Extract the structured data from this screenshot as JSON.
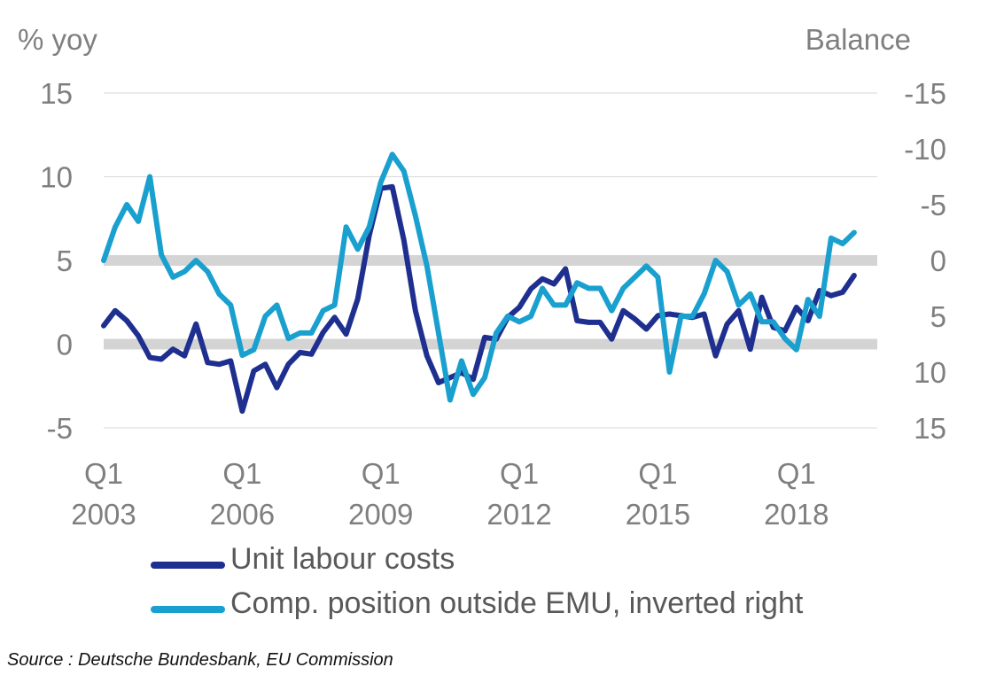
{
  "chart_data": {
    "type": "line",
    "left_axis_title": "% yoy",
    "right_axis_title": "Balance",
    "left_ylim": [
      -5,
      15
    ],
    "left_ticks": [
      "15",
      "10",
      "5",
      "0",
      "-5"
    ],
    "left_tick_values": [
      15,
      10,
      5,
      0,
      -5
    ],
    "right_ylim": [
      15,
      -15
    ],
    "right_ticks": [
      "-15",
      "-10",
      "-5",
      "0",
      "5",
      "10",
      "15"
    ],
    "right_tick_values": [
      -15,
      -10,
      -5,
      0,
      5,
      10,
      15
    ],
    "x_quarter_start": "2003Q1",
    "x_quarter_count": 68,
    "x_tick_labels": [
      {
        "q": 0,
        "line1": "Q1",
        "line2": "2003"
      },
      {
        "q": 12,
        "line1": "Q1",
        "line2": "2006"
      },
      {
        "q": 24,
        "line1": "Q1",
        "line2": "2009"
      },
      {
        "q": 36,
        "line1": "Q1",
        "line2": "2012"
      },
      {
        "q": 48,
        "line1": "Q1",
        "line2": "2015"
      },
      {
        "q": 60,
        "line1": "Q1",
        "line2": "2018"
      }
    ],
    "reference_bands_left": [
      0,
      5
    ],
    "series": [
      {
        "name": "Unit labour costs",
        "axis": "left",
        "color": "#1f2f8f",
        "values": [
          1.1,
          2.0,
          1.4,
          0.5,
          -0.8,
          -0.9,
          -0.3,
          -0.7,
          1.2,
          -1.1,
          -1.2,
          -1.0,
          -4.0,
          -1.6,
          -1.2,
          -2.6,
          -1.2,
          -0.5,
          -0.6,
          0.7,
          1.6,
          0.6,
          2.7,
          6.5,
          9.3,
          9.4,
          6.2,
          2.0,
          -0.7,
          -2.3,
          -2.0,
          -1.7,
          -2.1,
          0.4,
          0.3,
          1.6,
          2.2,
          3.3,
          3.9,
          3.6,
          4.5,
          1.4,
          1.3,
          1.3,
          0.3,
          2.0,
          1.5,
          0.9,
          1.7,
          1.8,
          1.7,
          1.6,
          1.8,
          -0.7,
          1.2,
          2.0,
          -0.3,
          2.8,
          1.0,
          0.8,
          2.2,
          1.4,
          3.2,
          2.9,
          3.1,
          4.1
        ]
      },
      {
        "name": "Comp. position outside EMU, inverted right",
        "axis": "right",
        "color": "#1aa0cf",
        "values": [
          0.0,
          -3.0,
          -5.0,
          -3.5,
          -7.5,
          -0.5,
          1.5,
          1.0,
          0.0,
          1.0,
          3.0,
          4.0,
          8.5,
          8.0,
          5.0,
          4.0,
          7.0,
          6.5,
          6.5,
          4.5,
          4.0,
          -3.0,
          -1.0,
          -3.0,
          -7.0,
          -9.5,
          -8.0,
          -4.0,
          0.5,
          6.5,
          12.5,
          9.0,
          12.0,
          10.5,
          6.5,
          5.0,
          5.5,
          5.0,
          2.5,
          4.0,
          4.0,
          2.0,
          2.5,
          2.5,
          4.5,
          2.5,
          1.5,
          0.5,
          1.5,
          10.0,
          5.0,
          5.0,
          3.0,
          0.0,
          1.0,
          4.0,
          3.0,
          5.5,
          5.5,
          7.0,
          8.0,
          3.5,
          5.0,
          -2.0,
          -1.5,
          -2.5
        ]
      }
    ]
  },
  "legend": {
    "items": [
      {
        "label": "Unit labour costs",
        "color": "#1f2f8f"
      },
      {
        "label": "Comp. position outside EMU, inverted right",
        "color": "#1aa0cf"
      }
    ]
  },
  "source": "Source : Deutsche Bundesbank, EU Commission"
}
